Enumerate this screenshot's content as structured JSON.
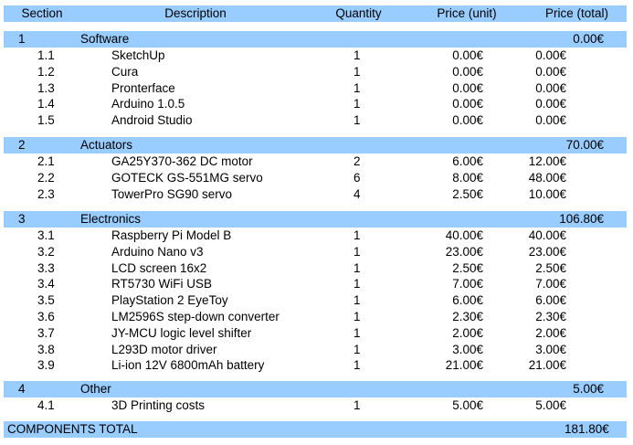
{
  "header": {
    "section": "Section",
    "description": "Description",
    "quantity": "Quantity",
    "price_unit": "Price (unit)",
    "price_total": "Price (total)"
  },
  "groups": [
    {
      "id": "1",
      "name": "Software",
      "total": "0.00€",
      "items": [
        {
          "id": "1.1",
          "desc": "SketchUp",
          "qty": "1",
          "unit": "0.00€",
          "total": "0.00€"
        },
        {
          "id": "1.2",
          "desc": "Cura",
          "qty": "1",
          "unit": "0.00€",
          "total": "0.00€"
        },
        {
          "id": "1.3",
          "desc": "Pronterface",
          "qty": "1",
          "unit": "0.00€",
          "total": "0.00€"
        },
        {
          "id": "1.4",
          "desc": "Arduino 1.0.5",
          "qty": "1",
          "unit": "0.00€",
          "total": "0.00€"
        },
        {
          "id": "1.5",
          "desc": "Android Studio",
          "qty": "1",
          "unit": "0.00€",
          "total": "0.00€"
        }
      ]
    },
    {
      "id": "2",
      "name": "Actuators",
      "total": "70.00€",
      "items": [
        {
          "id": "2.1",
          "desc": "GA25Y370-362 DC motor",
          "qty": "2",
          "unit": "6.00€",
          "total": "12.00€"
        },
        {
          "id": "2.2",
          "desc": "GOTECK GS-551MG servo",
          "qty": "6",
          "unit": "8.00€",
          "total": "48.00€"
        },
        {
          "id": "2.3",
          "desc": "TowerPro SG90 servo",
          "qty": "4",
          "unit": "2.50€",
          "total": "10.00€"
        }
      ]
    },
    {
      "id": "3",
      "name": "Electronics",
      "total": "106.80€",
      "items": [
        {
          "id": "3.1",
          "desc": "Raspberry Pi Model B",
          "qty": "1",
          "unit": "40.00€",
          "total": "40.00€"
        },
        {
          "id": "3.2",
          "desc": "Arduino Nano v3",
          "qty": "1",
          "unit": "23.00€",
          "total": "23.00€"
        },
        {
          "id": "3.3",
          "desc": "LCD screen 16x2",
          "qty": "1",
          "unit": "2.50€",
          "total": "2.50€"
        },
        {
          "id": "3.4",
          "desc": "RT5730 WiFi USB",
          "qty": "1",
          "unit": "7.00€",
          "total": "7.00€"
        },
        {
          "id": "3.5",
          "desc": "PlayStation 2 EyeToy",
          "qty": "1",
          "unit": "6.00€",
          "total": "6.00€"
        },
        {
          "id": "3.6",
          "desc": "LM2596S step-down converter",
          "qty": "1",
          "unit": "2.30€",
          "total": "2.30€"
        },
        {
          "id": "3.7",
          "desc": "JY-MCU logic level shifter",
          "qty": "1",
          "unit": "2.00€",
          "total": "2.00€"
        },
        {
          "id": "3.8",
          "desc": "L293D motor driver",
          "qty": "1",
          "unit": "3.00€",
          "total": "3.00€"
        },
        {
          "id": "3.9",
          "desc": "Li-ion 12V 6800mAh battery",
          "qty": "1",
          "unit": "21.00€",
          "total": "21.00€"
        }
      ]
    },
    {
      "id": "4",
      "name": "Other",
      "total": "5.00€",
      "items": [
        {
          "id": "4.1",
          "desc": "3D Printing costs",
          "qty": "1",
          "unit": "5.00€",
          "total": "5.00€"
        }
      ]
    }
  ],
  "footer": {
    "label": "COMPONENTS TOTAL",
    "total": "181.80€"
  }
}
